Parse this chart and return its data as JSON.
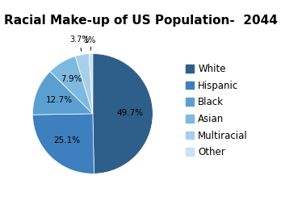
{
  "title": "Racial Make-up of US Population-  2044",
  "slices": [
    49.7,
    25.1,
    12.7,
    7.9,
    3.7,
    1.0
  ],
  "labels": [
    "White",
    "Hispanic",
    "Black",
    "Asian",
    "Multiracial",
    "Other"
  ],
  "colors": [
    "#2E5E8A",
    "#3D7FBF",
    "#5B9FD0",
    "#7EBAE0",
    "#A8CFEA",
    "#C8E2F2"
  ],
  "autopct_labels": [
    "49.7%",
    "25.1%",
    "12.7%",
    "7.9%",
    "3.7%",
    "1%"
  ],
  "startangle": 90,
  "title_fontsize": 11,
  "legend_fontsize": 8.5
}
